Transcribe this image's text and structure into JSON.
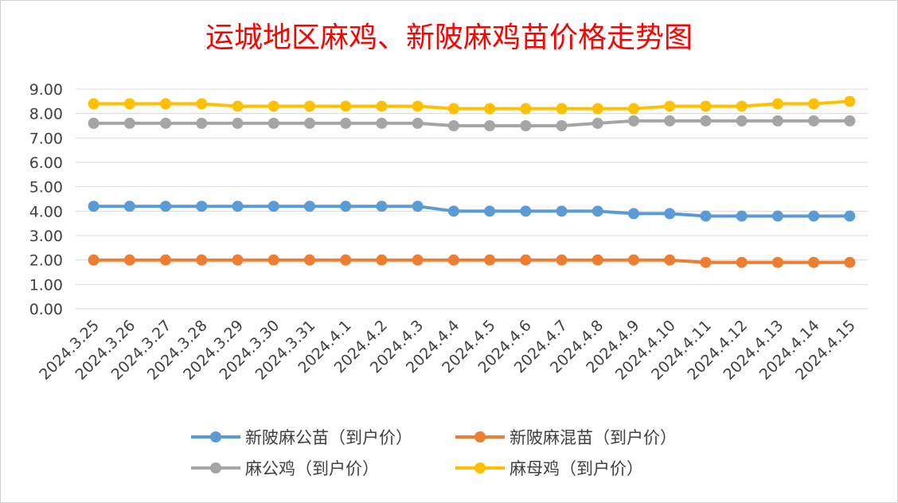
{
  "chart_data": {
    "type": "line",
    "title": "运城地区麻鸡、新陂麻鸡苗价格走势图",
    "categories": [
      "2024.3.25",
      "2024.3.26",
      "2024.3.27",
      "2024.3.28",
      "2024.3.29",
      "2024.3.30",
      "2024.3.31",
      "2024.4.1",
      "2024.4.2",
      "2024.4.3",
      "2024.4.4",
      "2024.4.5",
      "2024.4.6",
      "2024.4.7",
      "2024.4.8",
      "2024.4.9",
      "2024.4.10",
      "2024.4.11",
      "2024.4.12",
      "2024.4.13",
      "2024.4.14",
      "2024.4.15"
    ],
    "y_ticks": [
      "0.00",
      "1.00",
      "2.00",
      "3.00",
      "4.00",
      "5.00",
      "6.00",
      "7.00",
      "8.00",
      "9.00"
    ],
    "ylim": [
      0,
      9
    ],
    "grid": true,
    "legend_position": "bottom",
    "series": [
      {
        "name": "新陂麻公苗（到户价）",
        "color": "#5b9bd5",
        "values": [
          4.2,
          4.2,
          4.2,
          4.2,
          4.2,
          4.2,
          4.2,
          4.2,
          4.2,
          4.2,
          4.0,
          4.0,
          4.0,
          4.0,
          4.0,
          3.9,
          3.9,
          3.8,
          3.8,
          3.8,
          3.8,
          3.8
        ]
      },
      {
        "name": "新陂麻混苗（到户价）",
        "color": "#ed7d31",
        "values": [
          2.0,
          2.0,
          2.0,
          2.0,
          2.0,
          2.0,
          2.0,
          2.0,
          2.0,
          2.0,
          2.0,
          2.0,
          2.0,
          2.0,
          2.0,
          2.0,
          2.0,
          1.9,
          1.9,
          1.9,
          1.9,
          1.9
        ]
      },
      {
        "name": "麻公鸡（到户价）",
        "color": "#a5a5a5",
        "values": [
          7.6,
          7.6,
          7.6,
          7.6,
          7.6,
          7.6,
          7.6,
          7.6,
          7.6,
          7.6,
          7.5,
          7.5,
          7.5,
          7.5,
          7.6,
          7.7,
          7.7,
          7.7,
          7.7,
          7.7,
          7.7,
          7.7
        ]
      },
      {
        "name": "麻母鸡（到户价）",
        "color": "#ffc000",
        "values": [
          8.4,
          8.4,
          8.4,
          8.4,
          8.3,
          8.3,
          8.3,
          8.3,
          8.3,
          8.3,
          8.2,
          8.2,
          8.2,
          8.2,
          8.2,
          8.2,
          8.3,
          8.3,
          8.3,
          8.4,
          8.4,
          8.5
        ]
      }
    ]
  }
}
